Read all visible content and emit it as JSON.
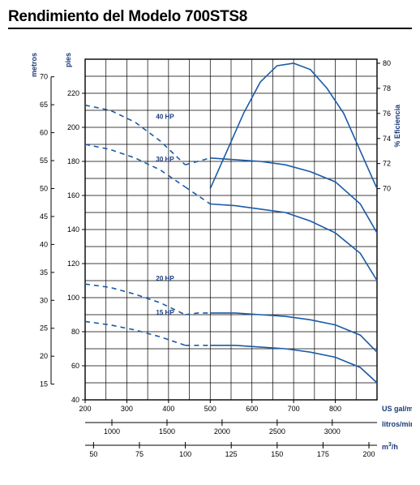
{
  "title": "Rendimiento del Modelo 700STS8",
  "colors": {
    "line": "#1a5aa8",
    "dash": "#1a5aa8",
    "grid": "#000000",
    "bg": "#ffffff",
    "labelBlue": "#1a3a7a"
  },
  "plot": {
    "x_gal": {
      "min": 200,
      "max": 900,
      "ticks": [
        200,
        300,
        400,
        500,
        600,
        700,
        800
      ],
      "label": "US gal/min"
    },
    "x_lmin": {
      "ticks": [
        1000,
        1500,
        2000,
        2500,
        3000
      ],
      "label": "litros/min"
    },
    "x_m3h": {
      "ticks": [
        50,
        75,
        100,
        125,
        150,
        175,
        200
      ],
      "label": "m³/h"
    },
    "y_pies": {
      "min": 40,
      "max": 240,
      "ticks": [
        40,
        60,
        80,
        100,
        120,
        140,
        160,
        180,
        200,
        220
      ],
      "label": "pies"
    },
    "y_metros": {
      "ticks": [
        15,
        20,
        25,
        30,
        35,
        40,
        45,
        50,
        55,
        60,
        65,
        70
      ],
      "label": "metros"
    },
    "y_eff": {
      "min": 70,
      "max": 80,
      "ticks": [
        70,
        72,
        74,
        76,
        78,
        80
      ],
      "label": "% Eficiencia"
    }
  },
  "hp_labels": [
    {
      "txt": "40 HP",
      "gal": 370,
      "pies": 205
    },
    {
      "txt": "30 HP",
      "gal": 370,
      "pies": 180
    },
    {
      "txt": "20 HP",
      "gal": 370,
      "pies": 110
    },
    {
      "txt": "15 HP",
      "gal": 370,
      "pies": 90
    }
  ],
  "efficiency_curve": [
    [
      500,
      70
    ],
    [
      540,
      73
    ],
    [
      580,
      76
    ],
    [
      620,
      78.5
    ],
    [
      660,
      79.8
    ],
    [
      700,
      80
    ],
    [
      740,
      79.5
    ],
    [
      780,
      78
    ],
    [
      820,
      76
    ],
    [
      860,
      73
    ],
    [
      900,
      70
    ]
  ],
  "head_curves": [
    [
      [
        200,
        213
      ],
      [
        260,
        210
      ],
      [
        320,
        203
      ],
      [
        380,
        192
      ],
      [
        440,
        178
      ]
    ],
    [
      [
        200,
        190
      ],
      [
        260,
        187
      ],
      [
        320,
        182
      ],
      [
        380,
        175
      ],
      [
        440,
        165
      ]
    ],
    [
      [
        500,
        182
      ],
      [
        560,
        181
      ],
      [
        620,
        180
      ],
      [
        680,
        178
      ],
      [
        740,
        174
      ],
      [
        800,
        168
      ],
      [
        860,
        155
      ],
      [
        900,
        138
      ]
    ],
    [
      [
        500,
        155
      ],
      [
        560,
        154
      ],
      [
        620,
        152
      ],
      [
        680,
        150
      ],
      [
        740,
        145
      ],
      [
        800,
        138
      ],
      [
        860,
        126
      ],
      [
        900,
        110
      ]
    ],
    [
      [
        200,
        108
      ],
      [
        260,
        106
      ],
      [
        320,
        102
      ],
      [
        380,
        97
      ],
      [
        440,
        90
      ]
    ],
    [
      [
        200,
        86
      ],
      [
        260,
        84
      ],
      [
        320,
        81
      ],
      [
        380,
        77
      ],
      [
        440,
        72
      ]
    ],
    [
      [
        500,
        91
      ],
      [
        560,
        91
      ],
      [
        620,
        90
      ],
      [
        680,
        89
      ],
      [
        740,
        87
      ],
      [
        800,
        84
      ],
      [
        860,
        78
      ],
      [
        900,
        68
      ]
    ],
    [
      [
        500,
        72
      ],
      [
        560,
        72
      ],
      [
        620,
        71
      ],
      [
        680,
        70
      ],
      [
        740,
        68
      ],
      [
        800,
        65
      ],
      [
        860,
        59
      ],
      [
        900,
        50
      ]
    ]
  ],
  "dashed_bridges": [
    [
      [
        440,
        178
      ],
      [
        470,
        180
      ],
      [
        500,
        182
      ]
    ],
    [
      [
        440,
        165
      ],
      [
        470,
        160
      ],
      [
        500,
        155
      ]
    ],
    [
      [
        440,
        90
      ],
      [
        470,
        91
      ],
      [
        500,
        91
      ]
    ],
    [
      [
        440,
        72
      ],
      [
        470,
        72
      ],
      [
        500,
        72
      ]
    ]
  ],
  "style": {
    "line_width": 1.6,
    "grid_width": 0.7,
    "dash_pattern": "6,5",
    "title_fontsize": 19
  }
}
